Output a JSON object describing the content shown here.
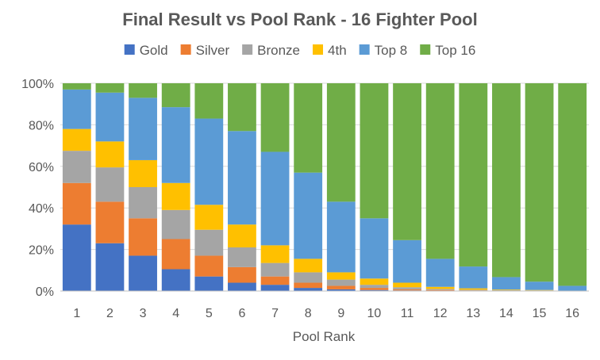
{
  "chart_data": {
    "type": "bar",
    "stacked": true,
    "percent_stacked": true,
    "title": "Final Result vs Pool Rank - 16 Fighter Pool",
    "xlabel": "Pool Rank",
    "ylabel": "",
    "ylim": [
      0,
      100
    ],
    "yticks": [
      "0%",
      "20%",
      "40%",
      "60%",
      "80%",
      "100%"
    ],
    "legend_position": "top",
    "grid": true,
    "categories": [
      "1",
      "2",
      "3",
      "4",
      "5",
      "6",
      "7",
      "8",
      "9",
      "10",
      "11",
      "12",
      "13",
      "14",
      "15",
      "16"
    ],
    "series": [
      {
        "name": "Gold",
        "color": "#4472C4",
        "values": [
          32,
          23,
          17,
          10.5,
          7,
          4,
          3,
          1.5,
          0.8,
          0.5,
          0.3,
          0.2,
          0.1,
          0.1,
          0.1,
          0
        ]
      },
      {
        "name": "Silver",
        "color": "#ED7D31",
        "values": [
          20,
          20,
          18,
          14.5,
          10,
          7.5,
          4,
          2.5,
          1.7,
          1,
          0.5,
          0.3,
          0.2,
          0.1,
          0.1,
          0
        ]
      },
      {
        "name": "Bronze",
        "color": "#A5A5A5",
        "values": [
          15.5,
          16.5,
          15,
          14,
          12.5,
          9.5,
          6.5,
          5,
          3,
          1.5,
          1,
          0.5,
          0.3,
          0.2,
          0.1,
          0
        ]
      },
      {
        "name": "4th",
        "color": "#FFC000",
        "values": [
          10.5,
          12.5,
          13,
          13,
          12,
          11,
          8.5,
          6.5,
          3.5,
          3,
          2.2,
          1,
          0.7,
          0.3,
          0.2,
          0
        ]
      },
      {
        "name": "Top 8",
        "color": "#5B9BD5",
        "values": [
          19,
          23.5,
          30,
          36.5,
          41.5,
          45,
          45,
          41.5,
          34,
          29,
          20.5,
          13.5,
          10.5,
          6,
          4,
          2.5
        ]
      },
      {
        "name": "Top 16",
        "color": "#70AD47",
        "values": [
          3,
          4.5,
          7,
          11.5,
          17,
          23,
          33,
          43,
          57,
          65,
          75.5,
          84.5,
          88.2,
          93.3,
          95.5,
          97.5
        ]
      }
    ]
  }
}
